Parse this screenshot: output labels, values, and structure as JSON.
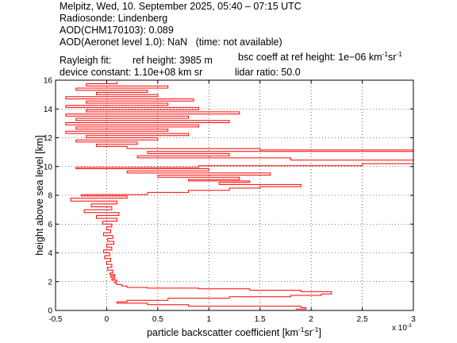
{
  "header": {
    "line1": "Melpitz, Wed, 10. September 2025, 05:40 – 07:15 UTC",
    "line2": "Radiosonde: Lindenberg",
    "line3": "AOD(CHM170103): 0.089",
    "line4": "AOD(Aeronet level 1.0): NaN   (time: not available)",
    "rayleigh_label": "Rayleigh fit:",
    "ref_height": "ref height: 3985 m",
    "bsc_coeff_prefix": "bsc coeff at ref height: 1e−06 km",
    "device_constant": "device constant: 1.10e+08 km sr",
    "lidar_ratio": "lidar ratio: 50.0"
  },
  "chart_data": {
    "type": "line",
    "xlabel_prefix": "particle backscatter coefficient [km",
    "ylabel": "height above sea level [km]",
    "xlim": [
      -0.0005,
      0.003
    ],
    "ylim": [
      0,
      16
    ],
    "x_scale_label": "x 10",
    "x_scale_exp": "-3",
    "x_ticks": [
      -0.0005,
      0,
      0.0005,
      0.001,
      0.0015,
      0.002,
      0.0025,
      0.003
    ],
    "x_tick_labels": [
      "-0.5",
      "0",
      "0.5",
      "1",
      "1.5",
      "2",
      "2.5",
      "3"
    ],
    "y_ticks": [
      0,
      2,
      4,
      6,
      8,
      10,
      12,
      14,
      16
    ],
    "y_tick_labels": [
      "0",
      "2",
      "4",
      "6",
      "8",
      "10",
      "12",
      "14",
      "16"
    ],
    "grid": true,
    "series": [
      {
        "color": "#ff0000",
        "points": [
          [
            0.00185,
            0.1
          ],
          [
            0.00195,
            0.2
          ],
          [
            0.0019,
            0.3
          ],
          [
            0.0008,
            0.4
          ],
          [
            0.0004,
            0.5
          ],
          [
            0.0001,
            0.6
          ],
          [
            0.0002,
            0.7
          ],
          [
            0.0006,
            0.85
          ],
          [
            0.0012,
            0.95
          ],
          [
            0.0018,
            1.05
          ],
          [
            0.0021,
            1.15
          ],
          [
            0.0022,
            1.3
          ],
          [
            0.0019,
            1.4
          ],
          [
            0.0014,
            1.5
          ],
          [
            0.0009,
            1.55
          ],
          [
            0.0004,
            1.6
          ],
          [
            0.0002,
            1.65
          ],
          [
            0.0002,
            1.7
          ],
          [
            0.00015,
            1.8
          ],
          [
            0.0001,
            1.9
          ],
          [
            8e-05,
            2.0
          ],
          [
            0.0001,
            2.1
          ],
          [
            5e-05,
            2.2
          ],
          [
            8e-05,
            2.3
          ],
          [
            4e-05,
            2.4
          ],
          [
            8e-05,
            2.5
          ],
          [
            3e-05,
            2.6
          ],
          [
            6e-05,
            2.8
          ],
          [
            1e-05,
            3.0
          ],
          [
            5e-05,
            3.2
          ],
          [
            0.0,
            3.4
          ],
          [
            4e-05,
            3.6
          ],
          [
            -2e-05,
            3.8
          ],
          [
            3e-05,
            4.0
          ],
          [
            -3e-05,
            4.2
          ],
          [
            5e-05,
            4.4
          ],
          [
            0.0,
            4.6
          ],
          [
            7e-05,
            4.8
          ],
          [
            1e-05,
            5.0
          ],
          [
            6e-05,
            5.2
          ],
          [
            -3e-05,
            5.4
          ],
          [
            4e-05,
            5.6
          ],
          [
            0.0,
            5.8
          ],
          [
            5e-05,
            6.0
          ],
          [
            -4e-05,
            6.2
          ],
          [
            0.0001,
            6.4
          ],
          [
            -0.0001,
            6.6
          ],
          [
            0.00012,
            6.8
          ],
          [
            -0.00022,
            7.0
          ],
          [
            5e-05,
            7.2
          ],
          [
            -0.00015,
            7.4
          ],
          [
            0.0001,
            7.6
          ],
          [
            -0.00035,
            7.8
          ],
          [
            0.0002,
            7.95
          ],
          [
            -0.00025,
            8.05
          ],
          [
            0.0004,
            8.2
          ],
          [
            0.0008,
            8.35
          ],
          [
            0.0012,
            8.5
          ],
          [
            0.0015,
            8.6
          ],
          [
            0.0019,
            8.75
          ],
          [
            0.0011,
            8.9
          ],
          [
            0.0014,
            9.0
          ],
          [
            0.0008,
            9.1
          ],
          [
            0.0013,
            9.25
          ],
          [
            0.0005,
            9.4
          ],
          [
            0.0016,
            9.55
          ],
          [
            0.0002,
            9.7
          ],
          [
            0.001,
            9.85
          ],
          [
            -0.0003,
            9.95
          ],
          [
            0.0009,
            10.05
          ],
          [
            0.0025,
            10.2
          ],
          [
            0.0032,
            10.45
          ],
          [
            0.0018,
            10.6
          ],
          [
            0.0003,
            10.75
          ],
          [
            0.0012,
            10.9
          ],
          [
            0.0004,
            11.05
          ],
          [
            0.0032,
            11.15
          ],
          [
            0.0015,
            11.25
          ],
          [
            0.0002,
            11.4
          ],
          [
            -0.0001,
            11.55
          ],
          [
            0.0003,
            11.7
          ],
          [
            -0.0003,
            11.85
          ],
          [
            0.0005,
            12.0
          ],
          [
            -0.0002,
            12.15
          ],
          [
            0.0008,
            12.3
          ],
          [
            -0.0004,
            12.45
          ],
          [
            0.0006,
            12.6
          ],
          [
            -0.0003,
            12.75
          ],
          [
            0.0009,
            12.9
          ],
          [
            -0.0004,
            13.05
          ],
          [
            0.0012,
            13.2
          ],
          [
            -0.0003,
            13.35
          ],
          [
            0.0008,
            13.5
          ],
          [
            -0.0004,
            13.65
          ],
          [
            0.0013,
            13.8
          ],
          [
            -0.0002,
            13.95
          ],
          [
            0.0009,
            14.1
          ],
          [
            -0.0004,
            14.25
          ],
          [
            0.0006,
            14.4
          ],
          [
            -0.0002,
            14.55
          ],
          [
            0.00085,
            14.7
          ],
          [
            -0.0004,
            14.85
          ],
          [
            0.0005,
            15.0
          ],
          [
            -0.0001,
            15.15
          ],
          [
            0.0004,
            15.3
          ],
          [
            -0.0003,
            15.45
          ],
          [
            0.0006,
            15.6
          ],
          [
            -0.0002,
            15.75
          ],
          [
            0.0001,
            15.9
          ]
        ]
      }
    ]
  }
}
